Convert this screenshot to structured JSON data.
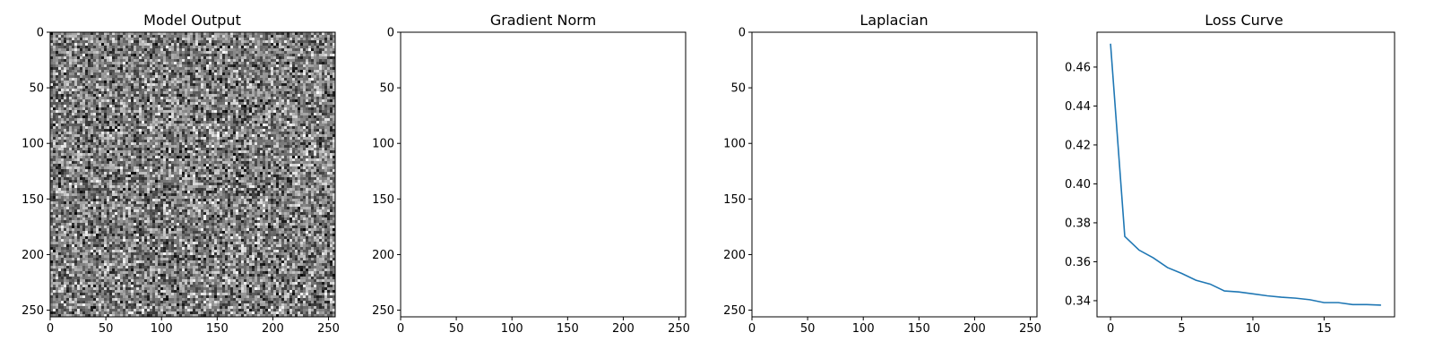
{
  "figure": {
    "background": "#ffffff",
    "line_color": "#1f77b4"
  },
  "chart_data": [
    {
      "type": "heatmap",
      "title": "Model Output",
      "content": "grayscale random noise image",
      "colormap": "gray",
      "xlim": [
        0,
        256
      ],
      "ylim": [
        256,
        0
      ],
      "xticks": [
        "0",
        "50",
        "100",
        "150",
        "200",
        "250"
      ],
      "yticks": [
        "0",
        "50",
        "100",
        "150",
        "200",
        "250"
      ],
      "grid": false
    },
    {
      "type": "heatmap",
      "title": "Gradient Norm",
      "content": "blank (all white)",
      "xlim": [
        0,
        256
      ],
      "ylim": [
        256,
        0
      ],
      "xticks": [
        "0",
        "50",
        "100",
        "150",
        "200",
        "250"
      ],
      "yticks": [
        "0",
        "50",
        "100",
        "150",
        "200",
        "250"
      ],
      "grid": false
    },
    {
      "type": "heatmap",
      "title": "Laplacian",
      "content": "blank (all white)",
      "xlim": [
        0,
        256
      ],
      "ylim": [
        256,
        0
      ],
      "xticks": [
        "0",
        "50",
        "100",
        "150",
        "200",
        "250"
      ],
      "yticks": [
        "0",
        "50",
        "100",
        "150",
        "200",
        "250"
      ],
      "grid": false
    },
    {
      "type": "line",
      "title": "Loss Curve",
      "x": [
        0,
        1,
        2,
        3,
        4,
        5,
        6,
        7,
        8,
        9,
        10,
        11,
        12,
        13,
        14,
        15,
        16,
        17,
        18,
        19
      ],
      "values": [
        0.472,
        0.373,
        0.366,
        0.362,
        0.357,
        0.354,
        0.3505,
        0.3485,
        0.345,
        0.3445,
        0.3435,
        0.3425,
        0.3418,
        0.3413,
        0.3405,
        0.339,
        0.339,
        0.338,
        0.338,
        0.3377
      ],
      "xlim": [
        -0.95,
        19.95
      ],
      "ylim": [
        0.3317,
        0.4779
      ],
      "xticks": [
        "0",
        "5",
        "10",
        "15"
      ],
      "yticks": [
        "0.34",
        "0.36",
        "0.38",
        "0.40",
        "0.42",
        "0.44",
        "0.46"
      ],
      "grid": false
    }
  ]
}
